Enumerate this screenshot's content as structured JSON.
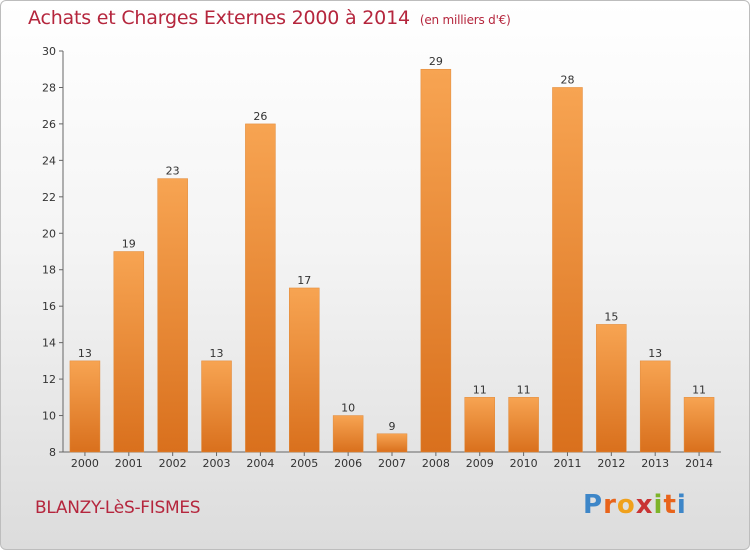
{
  "title": "Achats et Charges Externes 2000 à 2014",
  "unit_note": "(en milliers d'€)",
  "commune": "BLANZY-LèS-FISMES",
  "brand": "Proxiti",
  "colors": {
    "title": "#b5263d",
    "bar_light": "#f7a452",
    "bar_dark": "#d9701d",
    "axis": "#555555"
  },
  "chart_data": {
    "type": "bar",
    "categories": [
      "2000",
      "2001",
      "2002",
      "2003",
      "2004",
      "2005",
      "2006",
      "2007",
      "2008",
      "2009",
      "2010",
      "2011",
      "2012",
      "2013",
      "2014"
    ],
    "values": [
      13,
      19,
      23,
      13,
      26,
      17,
      10,
      9,
      29,
      11,
      11,
      28,
      15,
      13,
      11
    ],
    "ylim": [
      8,
      30
    ],
    "yticks": [
      8,
      10,
      12,
      14,
      16,
      18,
      20,
      22,
      24,
      26,
      28,
      30
    ],
    "grid": false,
    "legend": "none"
  }
}
